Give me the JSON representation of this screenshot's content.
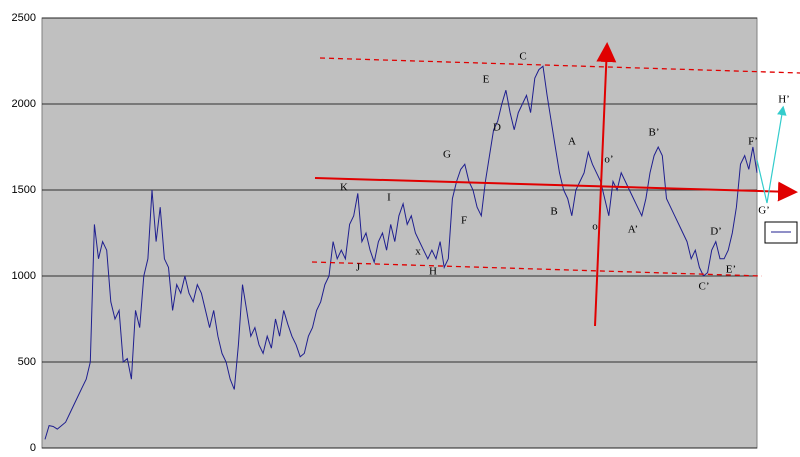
{
  "chart_data": {
    "type": "line",
    "ylim": [
      0,
      2500
    ],
    "yticks": [
      0,
      500,
      1000,
      1500,
      2000,
      2500
    ],
    "grid": true,
    "series": [
      {
        "color": "#1f1f8f",
        "values": [
          50,
          130,
          125,
          110,
          130,
          150,
          200,
          250,
          300,
          350,
          400,
          500,
          1300,
          1100,
          1200,
          1150,
          850,
          750,
          800,
          500,
          520,
          400,
          800,
          700,
          1000,
          1100,
          1500,
          1200,
          1400,
          1100,
          1050,
          800,
          950,
          900,
          1000,
          900,
          850,
          950,
          900,
          800,
          700,
          800,
          650,
          550,
          500,
          400,
          340,
          600,
          950,
          800,
          650,
          700,
          600,
          550,
          650,
          580,
          750,
          650,
          800,
          720,
          650,
          600,
          530,
          550,
          650,
          700,
          800,
          850,
          950,
          1000,
          1200,
          1100,
          1150,
          1100,
          1300,
          1350,
          1480,
          1200,
          1250,
          1150,
          1080,
          1200,
          1250,
          1150,
          1300,
          1200,
          1350,
          1420,
          1300,
          1350,
          1250,
          1200,
          1150,
          1100,
          1150,
          1100,
          1200,
          1050,
          1100,
          1450,
          1550,
          1620,
          1650,
          1550,
          1500,
          1400,
          1350,
          1550,
          1700,
          1850,
          1900,
          2000,
          2080,
          1950,
          1850,
          1950,
          2000,
          2050,
          1950,
          2150,
          2200,
          2220,
          2050,
          1900,
          1750,
          1600,
          1500,
          1450,
          1350,
          1500,
          1550,
          1600,
          1720,
          1650,
          1600,
          1550,
          1450,
          1350,
          1550,
          1500,
          1600,
          1550,
          1500,
          1450,
          1400,
          1350,
          1450,
          1600,
          1700,
          1750,
          1700,
          1450,
          1400,
          1350,
          1300,
          1250,
          1200,
          1100,
          1150,
          1050,
          1000,
          1020,
          1150,
          1200,
          1100,
          1100,
          1150,
          1250,
          1400,
          1650,
          1700,
          1620,
          1750,
          1600
        ]
      }
    ],
    "annotations": [
      "K",
      "I",
      "J",
      "x",
      "H",
      "G",
      "F",
      "E",
      "D",
      "C",
      "B",
      "A",
      "o",
      "o’",
      "A’",
      "B’",
      "C’",
      "D’",
      "E’",
      "F’",
      "G’",
      "H’"
    ]
  }
}
